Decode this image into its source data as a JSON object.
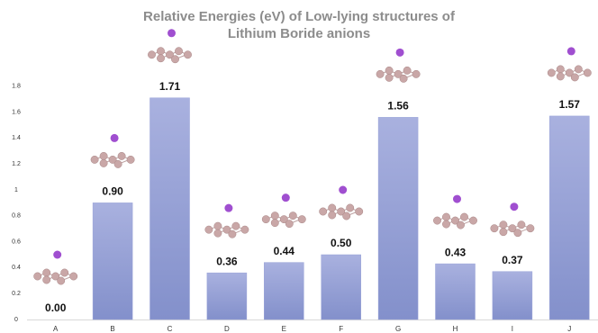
{
  "chart_data": {
    "type": "bar",
    "title": [
      "Relative Energies (eV) of Low-lying structures of",
      "Lithium Boride anions"
    ],
    "categories": [
      "A",
      "B",
      "C",
      "D",
      "E",
      "F",
      "G",
      "H",
      "I",
      "J"
    ],
    "values": [
      0,
      0.9,
      1.71,
      0.36,
      0.44,
      0.5,
      1.56,
      0.43,
      0.37,
      1.57
    ],
    "value_labels": [
      "0.00",
      "0.90",
      "1.71",
      "0.36",
      "0.44",
      "0.50",
      "1.56",
      "0.43",
      "0.37",
      "1.57"
    ],
    "color": "#98a2d8",
    "ylim": [
      0,
      2
    ],
    "yticks": [
      0,
      0.2,
      0.4,
      0.6,
      0.8,
      1,
      1.2,
      1.4,
      1.6,
      1.8
    ],
    "grid": false
  }
}
